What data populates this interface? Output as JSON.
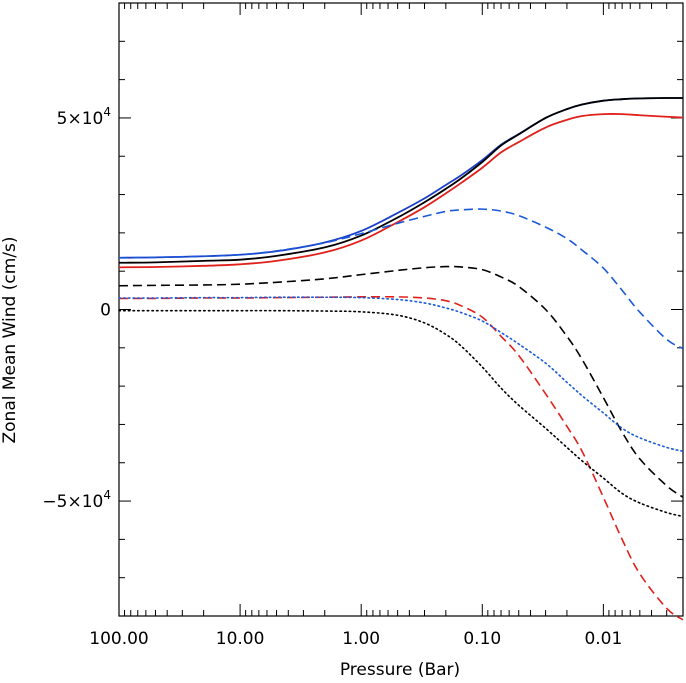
{
  "chart_data": {
    "type": "line",
    "title": "",
    "xlabel": "Pressure (Bar)",
    "ylabel": "Zonal Mean Wind (cm/s)",
    "xscale": "log",
    "xaxis_reversed": true,
    "xlim": [
      100,
      0.0022
    ],
    "ylim": [
      -80000,
      80000
    ],
    "x_tick_values": [
      100,
      10,
      1,
      0.1,
      0.01
    ],
    "x_tick_labels": [
      "100.00",
      "10.00",
      "1.00",
      "0.10",
      "0.01"
    ],
    "y_tick_values": [
      50000,
      0,
      -50000
    ],
    "y_tick_labels": [
      {
        "mantissa": "5×10",
        "exponent": "4"
      },
      {
        "mantissa": "0",
        "exponent": ""
      },
      {
        "mantissa": "−5×10",
        "exponent": "4"
      }
    ],
    "grid": false,
    "legend": "none",
    "x": [
      100,
      50,
      20,
      10,
      5,
      2,
      1,
      0.5,
      0.3,
      0.2,
      0.15,
      0.1,
      0.07,
      0.05,
      0.03,
      0.02,
      0.015,
      0.01,
      0.007,
      0.005,
      0.003,
      0.0022
    ],
    "series": [
      {
        "name": "blue solid",
        "color": "#1a3fc8",
        "dash": "solid",
        "values": [
          13500,
          13600,
          13900,
          14300,
          15200,
          17500,
          20500,
          25200,
          29000,
          32500,
          35000,
          39000,
          43000,
          45800,
          50000,
          52300,
          53500,
          54500,
          54900,
          55100,
          55200,
          55200
        ]
      },
      {
        "name": "black solid",
        "color": "#000000",
        "dash": "solid",
        "values": [
          12200,
          12300,
          12700,
          13000,
          14000,
          16200,
          19300,
          24000,
          28000,
          31500,
          34200,
          38500,
          42800,
          45700,
          50000,
          52300,
          53500,
          54500,
          54900,
          55100,
          55200,
          55200
        ]
      },
      {
        "name": "red solid",
        "color": "#e0201a",
        "dash": "solid",
        "values": [
          11000,
          11100,
          11400,
          11800,
          12700,
          14900,
          18000,
          22800,
          26700,
          30300,
          33000,
          37000,
          41000,
          43700,
          47500,
          49500,
          50500,
          51000,
          51000,
          50700,
          50300,
          50100
        ]
      },
      {
        "name": "blue dashed",
        "color": "#1a5ad8",
        "dash": "dashed",
        "values": [
          13500,
          13600,
          13900,
          14300,
          15300,
          17400,
          19800,
          22500,
          24300,
          25600,
          26000,
          26200,
          25700,
          24500,
          21500,
          18500,
          15500,
          10800,
          5000,
          -700,
          -7800,
          -10200
        ]
      },
      {
        "name": "black dashed",
        "color": "#000000",
        "dash": "dashed",
        "values": [
          6200,
          6300,
          6400,
          6600,
          7100,
          8000,
          9100,
          10200,
          10900,
          11200,
          11100,
          10400,
          8500,
          6000,
          0,
          -7000,
          -13000,
          -23000,
          -32000,
          -39000,
          -46000,
          -49000
        ]
      },
      {
        "name": "red dashed",
        "color": "#e0201a",
        "dash": "dashed",
        "values": [
          2900,
          2900,
          3000,
          3000,
          3100,
          3200,
          3300,
          3300,
          3000,
          2300,
          1000,
          -2000,
          -7000,
          -12000,
          -22000,
          -30500,
          -37000,
          -49000,
          -60000,
          -69000,
          -78000,
          -81000
        ]
      },
      {
        "name": "blue dotted",
        "color": "#1a5ad8",
        "dash": "dotted",
        "values": [
          3000,
          3000,
          3100,
          3100,
          3200,
          3200,
          3100,
          2600,
          1700,
          400,
          -800,
          -3000,
          -6000,
          -9000,
          -14000,
          -19000,
          -22500,
          -27000,
          -31000,
          -33500,
          -36000,
          -37000
        ]
      },
      {
        "name": "black dotted",
        "color": "#000000",
        "dash": "dotted",
        "values": [
          -300,
          -300,
          -300,
          -300,
          -300,
          -400,
          -600,
          -1500,
          -3500,
          -6500,
          -9500,
          -15000,
          -20500,
          -25000,
          -31000,
          -36000,
          -39500,
          -44000,
          -48000,
          -50500,
          -53000,
          -54000
        ]
      }
    ]
  }
}
